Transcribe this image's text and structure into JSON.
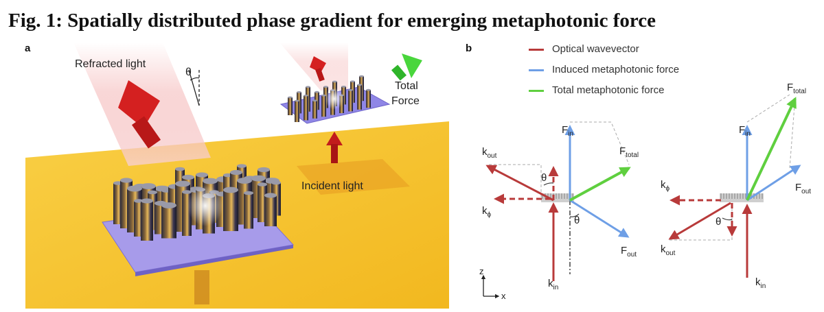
{
  "figure": {
    "title": "Fig. 1: Spatially distributed phase gradient for emerging metaphotonic force",
    "panel_a_letter": "a",
    "panel_b_letter": "b"
  },
  "panel_a": {
    "refracted_label": "Refracted light",
    "theta_label": "θ",
    "total_force_label_line1": "Total",
    "total_force_label_line2": "Force",
    "incident_label": "Incident light",
    "colors": {
      "plane": "#f7c531",
      "metasurface": "#9b8fe6",
      "red_arrow": "#d42020",
      "green_arrow": "#49d63c"
    }
  },
  "panel_b": {
    "legend": [
      {
        "label": "Optical wavevector",
        "color": "#b83a3a"
      },
      {
        "label": "Induced metaphotonic force",
        "color": "#6e9fe6"
      },
      {
        "label": "Total metaphotonic force",
        "color": "#5fcf3f"
      }
    ],
    "left": {
      "k_in": "k",
      "k_in_sub": "in",
      "k_out": "k",
      "k_out_sub": "out",
      "k_phi": "k",
      "k_phi_sub": "ϕ",
      "f_in": "F",
      "f_in_sub": "in",
      "f_out": "F",
      "f_out_sub": "out",
      "f_total": "F",
      "f_total_sub": "total",
      "theta_top": "θ",
      "theta_bottom": "θ"
    },
    "right": {
      "k_in": "k",
      "k_in_sub": "in",
      "k_out": "k",
      "k_out_sub": "out",
      "k_phi": "k",
      "k_phi_sub": "ϕ",
      "f_in": "F",
      "f_in_sub": "in",
      "f_out": "F",
      "f_out_sub": "out",
      "f_total": "F",
      "f_total_sub": "total",
      "theta": "θ"
    },
    "axes": {
      "z": "z",
      "x": "x"
    }
  }
}
